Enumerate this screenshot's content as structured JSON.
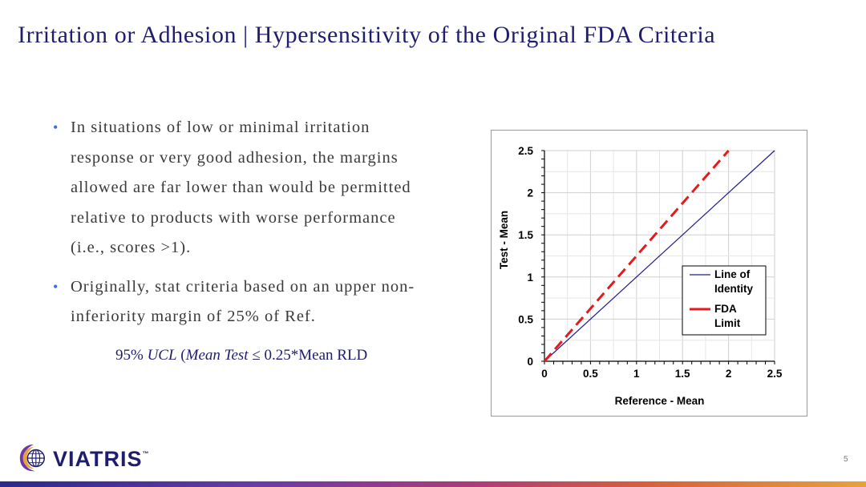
{
  "slide": {
    "title_main": "Irritation or Adhesion",
    "title_separator": "|",
    "title_sub": "Hypersensitivity of the Original FDA Criteria",
    "page_number": "5"
  },
  "bullets": [
    {
      "text": "In situations of low or minimal irritation response or very good adhesion, the margins allowed are far lower than would be permitted relative to products with worse performance (i.e., scores >1)."
    },
    {
      "text": "Originally, stat criteria based on an upper non-inferiority margin of 25% of Ref."
    }
  ],
  "bullet_marker": "•",
  "formula": {
    "prefix": "95% ",
    "ucl": "UCL",
    "open": " (",
    "mean_test": "Mean Test",
    "rest": " ≤ 0.25*Mean RLD"
  },
  "logo": {
    "name": "VIATRIS",
    "mark": "™"
  },
  "colors": {
    "title": "#1f1d6e",
    "bullet": "#3f6dd9",
    "identity": "#1f1d8c",
    "fda": "#e41a1c"
  },
  "chart_data": {
    "type": "line",
    "xlabel": "Reference - Mean",
    "ylabel": "Test - Mean",
    "xlim": [
      0,
      2.5
    ],
    "ylim": [
      0,
      2.5
    ],
    "xticks": [
      "0",
      "0.5",
      "1",
      "1.5",
      "2",
      "2.5"
    ],
    "yticks": [
      "0",
      "0.5",
      "1",
      "1.5",
      "2",
      "2.5"
    ],
    "grid": true,
    "legend_position": "lower-right",
    "series": [
      {
        "name": "Line of Identity",
        "legend_lines": [
          "Line of",
          "Identity"
        ],
        "style": "solid",
        "color": "#1f1d8c",
        "x": [
          0,
          2.5
        ],
        "y": [
          0,
          2.5
        ]
      },
      {
        "name": "FDA Limit",
        "legend_lines": [
          "FDA",
          "Limit"
        ],
        "style": "dashed",
        "color": "#e41a1c",
        "x": [
          0,
          2
        ],
        "y": [
          0,
          2.5
        ]
      }
    ]
  }
}
